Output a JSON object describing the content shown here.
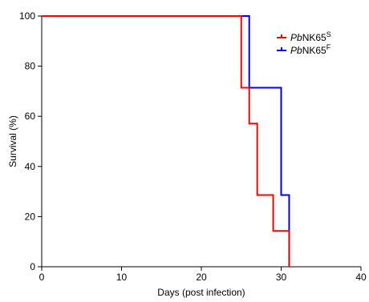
{
  "chart_data": {
    "type": "line",
    "step": true,
    "xlabel": "Days (post infection)",
    "ylabel": "Survival (%)",
    "xlim": [
      0,
      40
    ],
    "ylim": [
      0,
      100
    ],
    "xticks": [
      "0",
      "10",
      "20",
      "30",
      "40"
    ],
    "yticks": [
      "0",
      "20",
      "40",
      "60",
      "80",
      "100"
    ],
    "grid": false,
    "legend_position": "top-right",
    "series": [
      {
        "name_prefix": "Pb",
        "name_main": "NK65",
        "name_sup": "S",
        "color": "#ff0000",
        "x": [
          0,
          25,
          26,
          27,
          29,
          31
        ],
        "y": [
          100,
          71.4,
          57.1,
          28.6,
          14.3,
          0
        ]
      },
      {
        "name_prefix": "Pb",
        "name_main": "NK65",
        "name_sup": "F",
        "color": "#0000ff",
        "x": [
          0,
          26,
          30,
          31
        ],
        "y": [
          100,
          71.4,
          28.6,
          0
        ]
      }
    ]
  }
}
